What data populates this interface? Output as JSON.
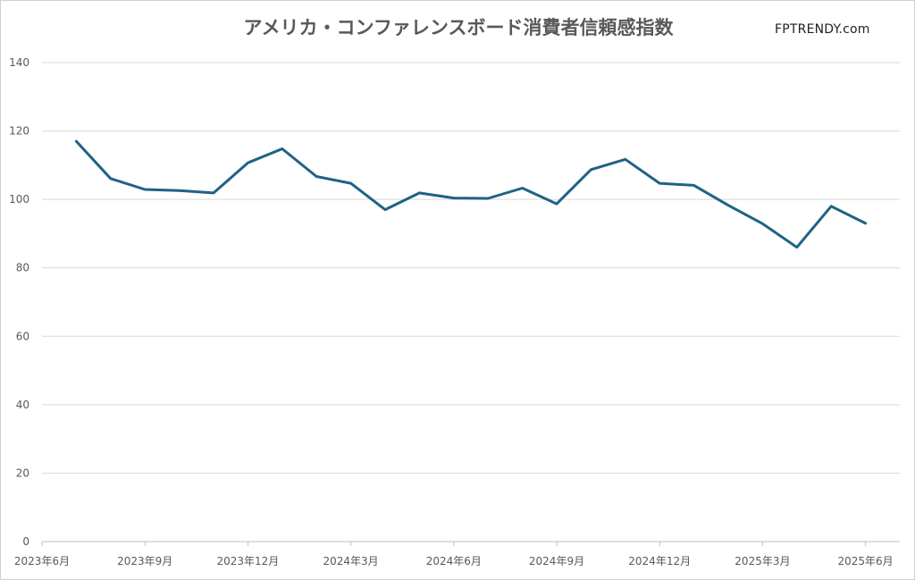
{
  "brand": "FPTRENDY.com",
  "chart_data": {
    "type": "line",
    "title": "アメリカ・コンファレンスボード消費者信頼感指数",
    "xlabel": "",
    "ylabel": "",
    "ylim": [
      0,
      140
    ],
    "yticks": [
      0,
      20,
      40,
      60,
      80,
      100,
      120,
      140
    ],
    "xtick_labels": [
      "2023年6月",
      "2023年9月",
      "2023年12月",
      "2024年3月",
      "2024年6月",
      "2024年9月",
      "2024年12月",
      "2025年3月",
      "2025年6月"
    ],
    "grid": true,
    "legend": "none",
    "colors": {
      "series": "#1f6285",
      "grid": "#d9d9d9",
      "text": "#595959"
    },
    "x": [
      "2023-07",
      "2023-08",
      "2023-09",
      "2023-10",
      "2023-11",
      "2023-12",
      "2024-01",
      "2024-02",
      "2024-03",
      "2024-04",
      "2024-05",
      "2024-06",
      "2024-07",
      "2024-08",
      "2024-09",
      "2024-10",
      "2024-11",
      "2024-12",
      "2025-01",
      "2025-02",
      "2025-03",
      "2025-04",
      "2025-05",
      "2025-06"
    ],
    "series": [
      {
        "values": [
          117.0,
          106.1,
          102.9,
          102.6,
          101.9,
          110.7,
          114.8,
          106.7,
          104.7,
          97.0,
          101.9,
          100.4,
          100.3,
          103.3,
          98.7,
          108.7,
          111.7,
          104.7,
          104.1,
          98.3,
          92.9,
          86.0,
          98.0,
          93.0
        ]
      }
    ]
  }
}
